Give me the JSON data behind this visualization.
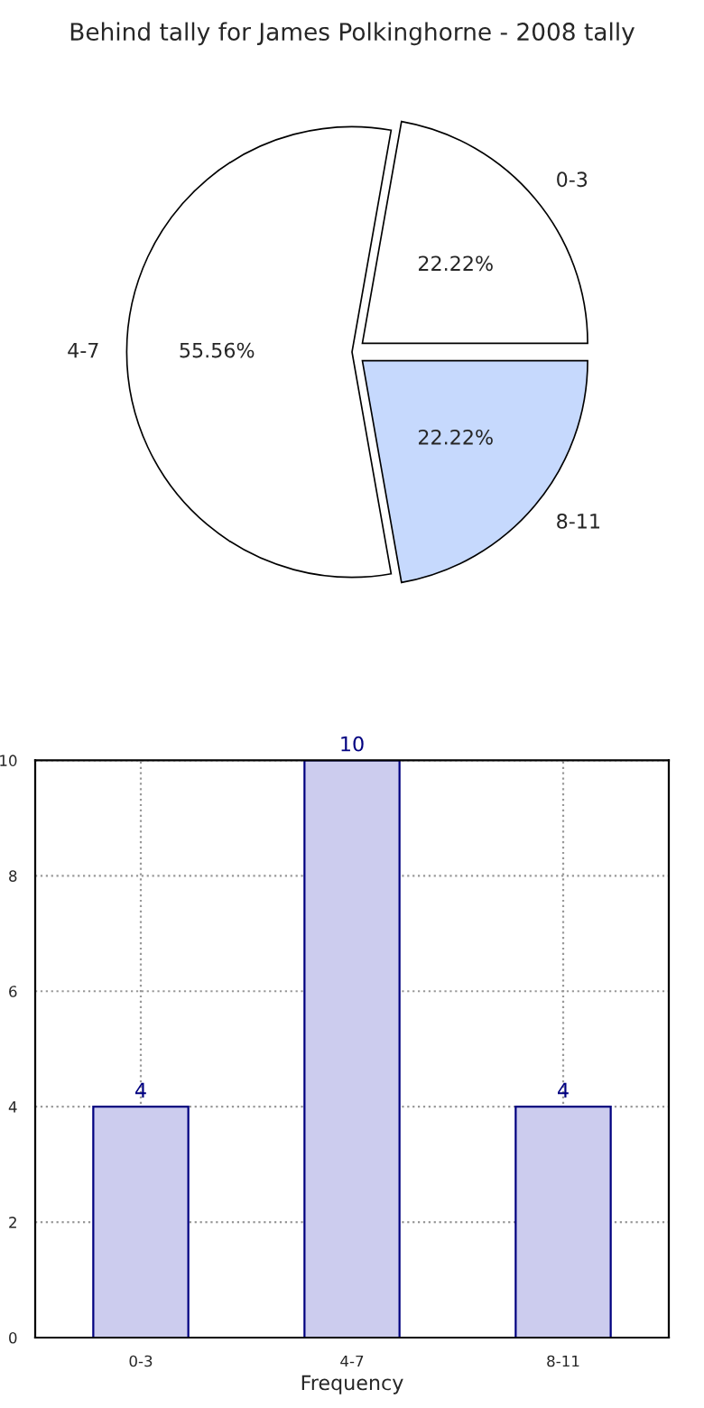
{
  "chart_data": [
    {
      "type": "pie",
      "title": "Behind tally for James Polkinghorne - 2008 tally",
      "categories": [
        "0-3",
        "4-7",
        "8-11"
      ],
      "values": [
        22.22,
        55.56,
        22.22
      ],
      "colors": [
        "#ffffff",
        "#ffffff",
        "#c6d9fd"
      ],
      "value_labels": [
        "22.22%",
        "55.56%",
        "22.22%"
      ]
    },
    {
      "type": "bar",
      "categories": [
        "0-3",
        "4-7",
        "8-11"
      ],
      "values": [
        4,
        10,
        4
      ],
      "color": "#ccccee",
      "xlabel": "Frequency",
      "ylim": [
        0,
        10
      ],
      "yticks": [
        0,
        2,
        4,
        6,
        8,
        10
      ],
      "grid": true,
      "data_labels": true
    }
  ]
}
